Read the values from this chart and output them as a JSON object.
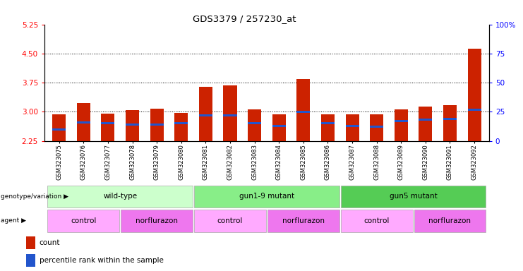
{
  "title": "GDS3379 / 257230_at",
  "samples": [
    "GSM323075",
    "GSM323076",
    "GSM323077",
    "GSM323078",
    "GSM323079",
    "GSM323080",
    "GSM323081",
    "GSM323082",
    "GSM323083",
    "GSM323084",
    "GSM323085",
    "GSM323086",
    "GSM323087",
    "GSM323088",
    "GSM323089",
    "GSM323090",
    "GSM323091",
    "GSM323092"
  ],
  "counts": [
    2.93,
    3.22,
    2.95,
    3.05,
    3.08,
    2.98,
    3.65,
    3.68,
    3.07,
    2.93,
    3.84,
    2.94,
    2.93,
    2.93,
    3.07,
    3.13,
    3.17,
    4.62
  ],
  "percentile_ranks": [
    10,
    16,
    15,
    14,
    14,
    15,
    22,
    22,
    15,
    13,
    25,
    15,
    13,
    12,
    17,
    18,
    19,
    27
  ],
  "ymin": 2.25,
  "ymax": 5.25,
  "yticks": [
    2.25,
    3.0,
    3.75,
    4.5,
    5.25
  ],
  "right_yticks": [
    0,
    25,
    50,
    75,
    100
  ],
  "bar_color": "#cc2200",
  "percentile_color": "#2255cc",
  "genotype_groups": [
    {
      "label": "wild-type",
      "start": 0,
      "end": 5,
      "color": "#ccffcc"
    },
    {
      "label": "gun1-9 mutant",
      "start": 6,
      "end": 11,
      "color": "#88ee88"
    },
    {
      "label": "gun5 mutant",
      "start": 12,
      "end": 17,
      "color": "#55cc55"
    }
  ],
  "agent_groups": [
    {
      "label": "control",
      "start": 0,
      "end": 2,
      "color": "#ffaaff"
    },
    {
      "label": "norflurazon",
      "start": 3,
      "end": 5,
      "color": "#ee77ee"
    },
    {
      "label": "control",
      "start": 6,
      "end": 8,
      "color": "#ffaaff"
    },
    {
      "label": "norflurazon",
      "start": 9,
      "end": 11,
      "color": "#ee77ee"
    },
    {
      "label": "control",
      "start": 12,
      "end": 14,
      "color": "#ffaaff"
    },
    {
      "label": "norflurazon",
      "start": 15,
      "end": 17,
      "color": "#ee77ee"
    }
  ],
  "bg_color": "#ffffff",
  "gridline_yticks": [
    3.0,
    3.75,
    4.5
  ]
}
